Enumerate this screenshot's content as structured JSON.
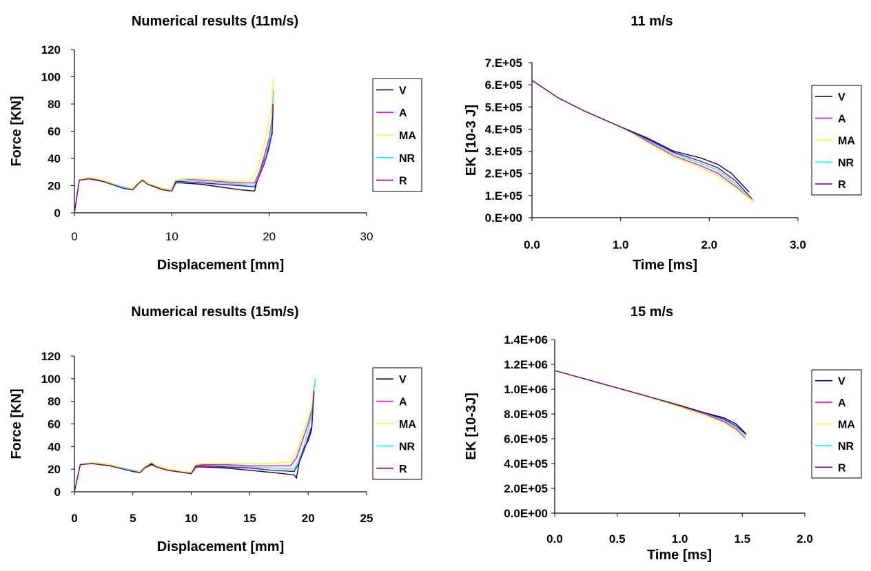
{
  "chart_data": [
    {
      "type": "line",
      "title": "Numerical results (11m/s)",
      "xlabel": "Displacement [mm]",
      "ylabel": "Force [KN]",
      "xlim": [
        0,
        30
      ],
      "ylim": [
        0,
        120
      ],
      "xticks": [
        0,
        10,
        20,
        30
      ],
      "yticks": [
        0,
        20,
        40,
        60,
        80,
        100,
        120
      ],
      "legend_position": "right",
      "colors": [
        "#000080",
        "#ff00ff",
        "#ffff00",
        "#00ffff",
        "#800080"
      ],
      "series": [
        {
          "name": "V",
          "x": [
            0,
            0.5,
            1.5,
            3,
            5,
            6,
            6.5,
            7,
            7.5,
            9,
            10,
            10.4,
            11,
            13,
            15,
            17,
            18.5,
            18.7,
            19.3,
            19.8,
            20.3,
            20.4
          ],
          "y": [
            0,
            24,
            25,
            23,
            18,
            17,
            21,
            24,
            21,
            17,
            16,
            22,
            22,
            21,
            19,
            17,
            16,
            22,
            35,
            45,
            58,
            80
          ]
        },
        {
          "name": "A",
          "x": [
            0,
            0.5,
            1.5,
            3,
            5,
            6,
            6.5,
            7,
            7.5,
            9,
            10,
            10.4,
            11,
            13,
            15,
            17,
            18.5,
            19,
            19.5,
            20,
            20.3,
            20.4
          ],
          "y": [
            0,
            24,
            26,
            23,
            19,
            17,
            21,
            24,
            21,
            18,
            17,
            24,
            25,
            24,
            23,
            22,
            22,
            30,
            42,
            55,
            70,
            90
          ]
        },
        {
          "name": "MA",
          "x": [
            0,
            0.5,
            1.5,
            3,
            5,
            6,
            6.5,
            7,
            7.5,
            9,
            10,
            10.4,
            11,
            13,
            15,
            17,
            18,
            18.7,
            19.3,
            19.8,
            20.3,
            20.4
          ],
          "y": [
            0,
            24,
            26,
            24,
            19,
            18,
            22,
            25,
            22,
            18,
            17,
            24,
            25,
            25,
            24,
            23,
            24,
            30,
            45,
            60,
            80,
            98
          ]
        },
        {
          "name": "NR",
          "x": [
            0,
            0.5,
            1.5,
            3,
            5,
            6,
            6.5,
            7,
            7.5,
            9,
            10,
            10.4,
            11,
            13,
            15,
            17,
            18.5,
            19,
            19.5,
            20,
            20.3,
            20.4
          ],
          "y": [
            0,
            24,
            25,
            23,
            19,
            17,
            21,
            24,
            21,
            17,
            16,
            23,
            24,
            23,
            22,
            21,
            20,
            28,
            38,
            52,
            68,
            85
          ]
        },
        {
          "name": "R",
          "x": [
            0,
            0.5,
            1.5,
            3,
            5,
            6,
            6.5,
            7,
            7.5,
            9,
            10,
            10.4,
            11,
            13,
            15,
            17,
            18.5,
            18.8,
            19.5,
            20,
            20.3,
            20.4
          ],
          "y": [
            0,
            24,
            25,
            23,
            18,
            17,
            21,
            24,
            21,
            17,
            16,
            23,
            23,
            22,
            21,
            20,
            19,
            24,
            36,
            48,
            60,
            80
          ]
        }
      ]
    },
    {
      "type": "line",
      "title": "11 m/s",
      "xlabel": "Time [ms]",
      "ylabel": "EK [10-3 J]",
      "xlim": [
        0,
        3
      ],
      "ylim": [
        0,
        700000
      ],
      "xticks": [
        "0.0",
        "1.0",
        "2.0",
        "3.0"
      ],
      "yticks": [
        "0.E+00",
        "1.E+05",
        "2.E+05",
        "3.E+05",
        "4.E+05",
        "5.E+05",
        "6.E+05",
        "7.E+05"
      ],
      "legend_position": "right",
      "colors": [
        "#000080",
        "#ff00ff",
        "#ffff00",
        "#00ffff",
        "#800080"
      ],
      "series": [
        {
          "name": "V",
          "x": [
            0,
            0.3,
            0.6,
            1.0,
            1.3,
            1.6,
            1.9,
            2.1,
            2.25,
            2.45
          ],
          "y": [
            620000,
            540000,
            480000,
            410000,
            360000,
            300000,
            270000,
            240000,
            200000,
            115000
          ]
        },
        {
          "name": "A",
          "x": [
            0,
            0.3,
            0.6,
            1.0,
            1.3,
            1.6,
            1.9,
            2.1,
            2.3,
            2.5
          ],
          "y": [
            620000,
            540000,
            480000,
            410000,
            345000,
            280000,
            235000,
            200000,
            140000,
            70000
          ]
        },
        {
          "name": "MA",
          "x": [
            0,
            0.3,
            0.6,
            1.0,
            1.3,
            1.6,
            1.9,
            2.1,
            2.3,
            2.5
          ],
          "y": [
            620000,
            540000,
            480000,
            410000,
            340000,
            275000,
            225000,
            190000,
            135000,
            70000
          ]
        },
        {
          "name": "NR",
          "x": [
            0,
            0.3,
            0.6,
            1.0,
            1.3,
            1.6,
            1.9,
            2.1,
            2.3,
            2.5
          ],
          "y": [
            620000,
            540000,
            480000,
            410000,
            350000,
            290000,
            245000,
            215000,
            150000,
            78000
          ]
        },
        {
          "name": "R",
          "x": [
            0,
            0.3,
            0.6,
            1.0,
            1.3,
            1.6,
            1.9,
            2.1,
            2.3,
            2.48
          ],
          "y": [
            620000,
            540000,
            480000,
            410000,
            355000,
            295000,
            255000,
            225000,
            165000,
            85000
          ]
        }
      ]
    },
    {
      "type": "line",
      "title": "Numerical results (15m/s)",
      "xlabel": "Displacement [mm]",
      "ylabel": "Force [KN]",
      "xlim": [
        0,
        25
      ],
      "ylim": [
        0,
        120
      ],
      "xticks": [
        0,
        5,
        10,
        15,
        20,
        25
      ],
      "yticks": [
        0,
        20,
        40,
        60,
        80,
        100,
        120
      ],
      "legend_position": "right",
      "colors": [
        "#000080",
        "#ff00ff",
        "#ffff00",
        "#00ffff",
        "#800080"
      ],
      "series": [
        {
          "name": "V",
          "x": [
            0,
            0.5,
            1.5,
            3,
            5,
            5.6,
            6,
            6.6,
            7,
            8,
            10,
            10.4,
            11,
            13,
            15,
            17,
            18.8,
            19,
            19.3,
            19.6,
            20,
            20.3,
            20.5
          ],
          "y": [
            0,
            24,
            25,
            23,
            18,
            17,
            21,
            24,
            22,
            19,
            16,
            22,
            22,
            21,
            19,
            17,
            15,
            12,
            30,
            38,
            45,
            55,
            88
          ]
        },
        {
          "name": "A",
          "x": [
            0,
            0.5,
            1.5,
            3,
            5,
            5.6,
            6,
            6.6,
            7,
            8,
            10,
            10.4,
            11,
            13,
            15,
            17,
            18.5,
            19,
            19.5,
            20,
            20.3,
            20.5
          ],
          "y": [
            0,
            24,
            26,
            24,
            19,
            18,
            22,
            26,
            23,
            20,
            17,
            24,
            24,
            24,
            23,
            23,
            23,
            30,
            45,
            60,
            72,
            95
          ]
        },
        {
          "name": "MA",
          "x": [
            0,
            0.5,
            1.5,
            3,
            5,
            5.6,
            6,
            6.6,
            7,
            8,
            10,
            10.4,
            11,
            13,
            15,
            17,
            18.5,
            19,
            19.5,
            20,
            20.3,
            20.5
          ],
          "y": [
            0,
            24,
            26,
            24,
            19,
            18,
            22,
            26,
            23,
            20,
            17,
            24,
            25,
            25,
            25,
            25,
            27,
            35,
            50,
            65,
            75,
            96
          ]
        },
        {
          "name": "NR",
          "x": [
            0,
            0.5,
            1.5,
            3,
            5,
            5.6,
            6,
            6.6,
            7,
            8,
            10,
            10.4,
            11,
            13,
            15,
            17,
            18.8,
            19.2,
            19.7,
            20,
            20.3,
            20.6
          ],
          "y": [
            0,
            24,
            25,
            23,
            19,
            17,
            21,
            25,
            22,
            19,
            16,
            23,
            23,
            23,
            22,
            21,
            20,
            28,
            42,
            55,
            70,
            100
          ]
        },
        {
          "name": "R",
          "x": [
            0,
            0.5,
            1.5,
            3,
            5,
            5.6,
            6,
            6.6,
            7,
            8,
            10,
            10.4,
            11,
            13,
            15,
            17,
            18.8,
            19.2,
            19.7,
            20,
            20.3,
            20.5
          ],
          "y": [
            0,
            24,
            25,
            23,
            18,
            17,
            21,
            25,
            22,
            19,
            16,
            23,
            23,
            22,
            21,
            19,
            18,
            25,
            38,
            48,
            58,
            90
          ]
        }
      ]
    },
    {
      "type": "line",
      "title": "15 m/s",
      "xlabel": "Time [ms]",
      "ylabel": "EK [10-3J]",
      "xlim": [
        0,
        2
      ],
      "ylim": [
        0,
        1400000
      ],
      "xticks": [
        "0.0",
        "0.5",
        "1.0",
        "1.5",
        "2.0"
      ],
      "yticks": [
        "0.0E+00",
        "2.0E+05",
        "4.0E+05",
        "6.0E+05",
        "8.0E+05",
        "1.0E+06",
        "1.2E+06",
        "1.4E+06"
      ],
      "legend_position": "right",
      "colors": [
        "#000080",
        "#ff00ff",
        "#ffff00",
        "#00ffff",
        "#800080"
      ],
      "series": [
        {
          "name": "V",
          "x": [
            0,
            0.25,
            0.5,
            0.75,
            1.0,
            1.2,
            1.35,
            1.45,
            1.53
          ],
          "y": [
            1150000,
            1080000,
            1010000,
            940000,
            870000,
            810000,
            770000,
            720000,
            640000
          ]
        },
        {
          "name": "A",
          "x": [
            0,
            0.25,
            0.5,
            0.75,
            1.0,
            1.2,
            1.35,
            1.45,
            1.52
          ],
          "y": [
            1150000,
            1080000,
            1010000,
            940000,
            860000,
            800000,
            740000,
            680000,
            610000
          ]
        },
        {
          "name": "MA",
          "x": [
            0,
            0.25,
            0.5,
            0.75,
            1.0,
            1.2,
            1.35,
            1.45,
            1.52
          ],
          "y": [
            1150000,
            1080000,
            1010000,
            935000,
            855000,
            790000,
            730000,
            670000,
            600000
          ]
        },
        {
          "name": "NR",
          "x": [
            0,
            0.25,
            0.5,
            0.75,
            1.0,
            1.2,
            1.35,
            1.45,
            1.53
          ],
          "y": [
            1150000,
            1080000,
            1010000,
            940000,
            865000,
            805000,
            750000,
            695000,
            620000
          ]
        },
        {
          "name": "R",
          "x": [
            0,
            0.25,
            0.5,
            0.75,
            1.0,
            1.2,
            1.35,
            1.45,
            1.53
          ],
          "y": [
            1150000,
            1080000,
            1010000,
            940000,
            868000,
            808000,
            760000,
            705000,
            635000
          ]
        }
      ]
    }
  ]
}
